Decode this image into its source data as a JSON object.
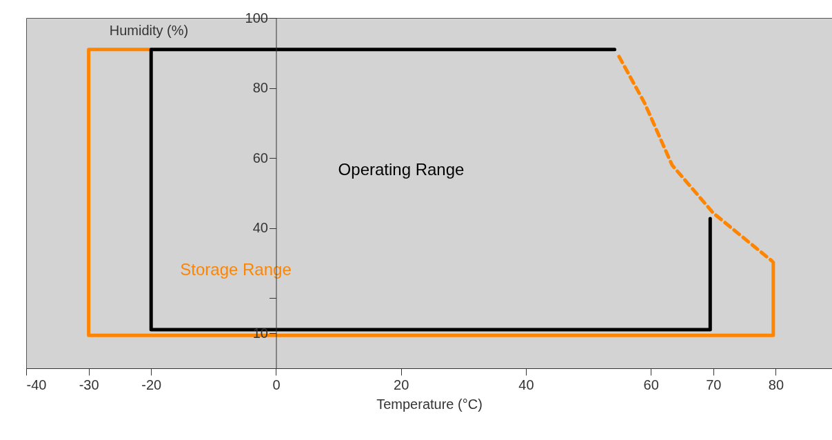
{
  "chart_data": {
    "type": "line",
    "xlabel": "Temperature (°C)",
    "ylabel": "Humidity (%)",
    "xlim": [
      -40,
      89
    ],
    "ylim": [
      0,
      100
    ],
    "xticks": [
      -40,
      -30,
      -20,
      0,
      20,
      40,
      60,
      70,
      80
    ],
    "yticks": [
      10,
      {
        "value": 20,
        "label": null
      },
      40,
      60,
      80,
      100
    ],
    "grid": false,
    "marker": "none",
    "series": [
      {
        "name": "Storage Range",
        "color": "#ff8400",
        "line_style": "solid",
        "x": [
          -20,
          -30,
          -30,
          79.6,
          79.6
        ],
        "values": [
          91,
          91,
          9.4,
          9.4,
          30.2
        ]
      },
      {
        "color": "#ff8400",
        "line_style": "dashed",
        "x": [
          54.9,
          59,
          63.4,
          70,
          79.4
        ],
        "values": [
          89,
          75.7,
          58,
          44.3,
          30.6
        ]
      },
      {
        "name": "Operating Range",
        "color": "#000000",
        "line_style": "solid",
        "x": [
          54.2,
          -20,
          -20,
          69.5,
          69.5
        ],
        "values": [
          91,
          91,
          11,
          11,
          42.7
        ]
      }
    ]
  }
}
